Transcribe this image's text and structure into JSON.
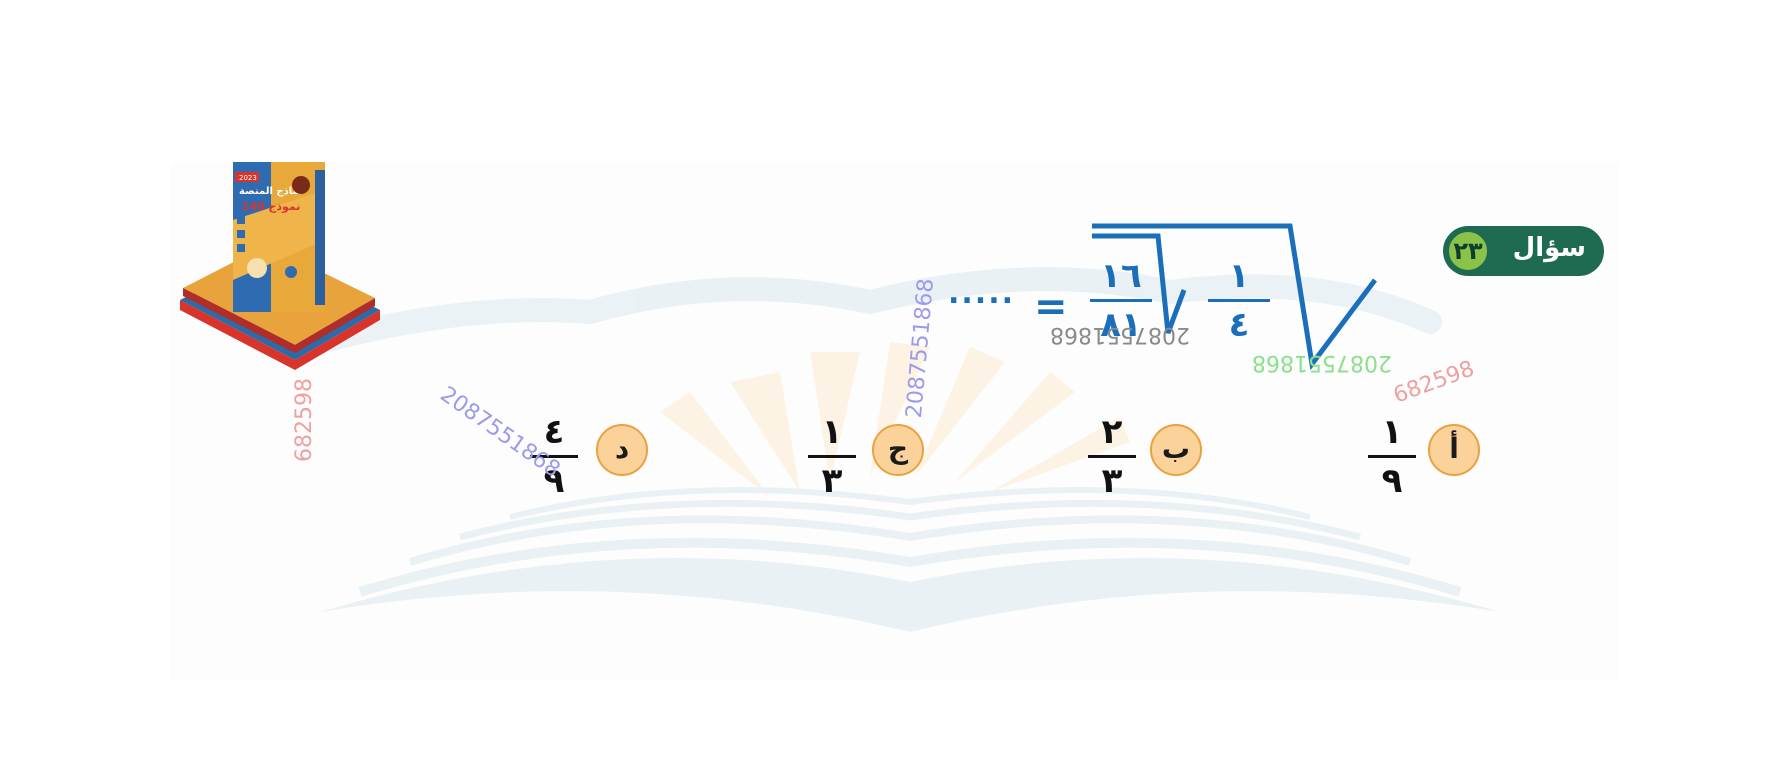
{
  "question": {
    "label": "سؤال",
    "number": "٢٣"
  },
  "equation": {
    "inner_num": "١",
    "inner_den": "٤",
    "outer_num": "١٦",
    "outer_den": "٨١",
    "equals": "=",
    "blank": "....."
  },
  "options": [
    {
      "letter": "أ",
      "num": "١",
      "den": "٩"
    },
    {
      "letter": "ب",
      "num": "٢",
      "den": "٣"
    },
    {
      "letter": "ج",
      "num": "١",
      "den": "٣"
    },
    {
      "letter": "د",
      "num": "٤",
      "den": "٩"
    }
  ],
  "watermarks": {
    "phone": "2087551868",
    "code": "682598"
  },
  "book": {
    "year": "2023",
    "title": "نماذج المنصة",
    "count": "140 نموذج"
  },
  "colors": {
    "blue": "#1b6fba",
    "badge_green": "#1f6b52",
    "badge_circle": "#8bc34a",
    "option_circle": "#fbd39a",
    "option_border": "#e8a240"
  }
}
